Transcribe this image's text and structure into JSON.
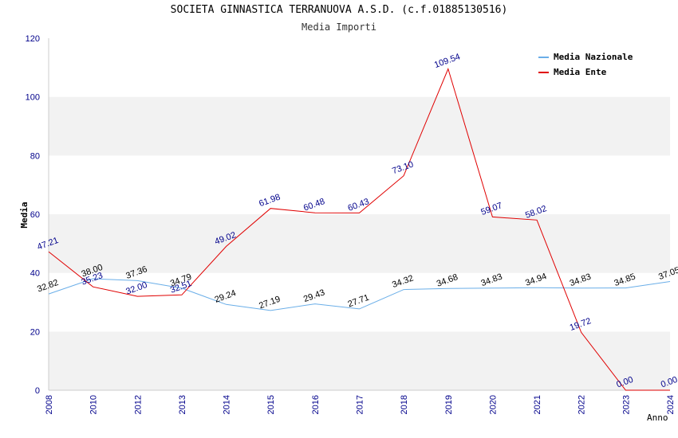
{
  "chart_data": {
    "type": "line",
    "title": "SOCIETA GINNASTICA TERRANUOVA A.S.D. (c.f.01885130516)",
    "subtitle": "Media Importi",
    "xlabel": "Anno",
    "ylabel": "Media",
    "ylim": [
      0,
      120
    ],
    "yticks": [
      "0",
      "20",
      "40",
      "60",
      "80",
      "100",
      "120"
    ],
    "categories": [
      "2008",
      "2010",
      "2012",
      "2013",
      "2014",
      "2015",
      "2016",
      "2017",
      "2018",
      "2019",
      "2020",
      "2021",
      "2022",
      "2023",
      "2024"
    ],
    "series": [
      {
        "name": "Media Nazionale",
        "color": "#6aaee8",
        "values": [
          32.82,
          38.0,
          37.36,
          34.79,
          29.24,
          27.19,
          29.43,
          27.71,
          34.32,
          34.68,
          34.83,
          34.94,
          34.83,
          34.85,
          37.05
        ],
        "labels": [
          "32.82",
          "38.00",
          "37.36",
          "34.79",
          "29.24",
          "27.19",
          "29.43",
          "27.71",
          "34.32",
          "34.68",
          "34.83",
          "34.94",
          "34.83",
          "34.85",
          "37.05"
        ]
      },
      {
        "name": "Media Ente",
        "color": "#e00000",
        "values": [
          47.21,
          35.23,
          32.0,
          32.51,
          49.02,
          61.98,
          60.48,
          60.43,
          73.1,
          109.54,
          59.07,
          58.02,
          19.72,
          0.0,
          0.0
        ],
        "labels": [
          "47.21",
          "35.23",
          "32.00",
          "32.51",
          "49.02",
          "61.98",
          "60.48",
          "60.43",
          "73.10",
          "109.54",
          "59.07",
          "58.02",
          "19.72",
          "0.00",
          "0.00"
        ]
      }
    ],
    "grid": true,
    "legend_position": "top-right"
  }
}
